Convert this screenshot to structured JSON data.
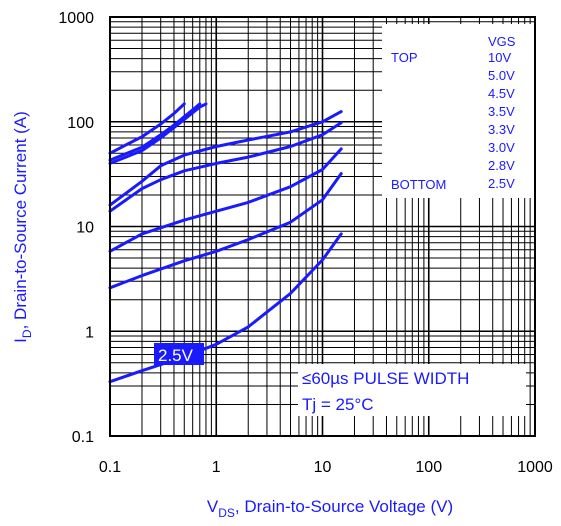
{
  "chart_data": {
    "type": "line",
    "x_scale": "log",
    "y_scale": "log",
    "xlim": [
      0.1,
      1000
    ],
    "ylim": [
      0.1,
      1000
    ],
    "grid": true,
    "xlabel": {
      "main": "V",
      "sub": "DS",
      "rest": ", Drain-to-Source Voltage (V)"
    },
    "ylabel": {
      "main": "I",
      "sub": "D",
      "rest": ", Drain-to-Source Current (A)"
    },
    "x_ticks": [
      {
        "value": 0.1,
        "label": "0.1"
      },
      {
        "value": 1,
        "label": "1"
      },
      {
        "value": 10,
        "label": "10"
      },
      {
        "value": 100,
        "label": "100"
      },
      {
        "value": 1000,
        "label": "1000"
      }
    ],
    "y_ticks": [
      {
        "value": 0.1,
        "label": "0.1"
      },
      {
        "value": 1,
        "label": "1"
      },
      {
        "value": 10,
        "label": "10"
      },
      {
        "value": 100,
        "label": "100"
      },
      {
        "value": 1000,
        "label": "1000"
      }
    ],
    "legend": {
      "header": "VGS",
      "top_label": "TOP",
      "bottom_label": "BOTTOM",
      "entries": [
        "10V",
        "5.0V",
        "4.5V",
        "3.5V",
        "3.3V",
        "3.0V",
        "2.8V",
        "2.5V"
      ]
    },
    "annotations": {
      "curve_label": "2.5V",
      "pulse": "≤60µs PULSE WIDTH",
      "tj": "Tj = 25°C"
    },
    "colors": {
      "curve": "#1a1aff",
      "text": "#1a1aff",
      "grid": "#000000"
    },
    "series": [
      {
        "x": [
          0.1,
          0.15,
          0.2,
          0.3,
          0.4,
          0.5
        ],
        "y": [
          50,
          62,
          72,
          95,
          120,
          148
        ]
      },
      {
        "x": [
          0.1,
          0.2,
          0.3,
          0.4,
          0.5,
          0.6,
          0.7
        ],
        "y": [
          43,
          57,
          75,
          93,
          112,
          130,
          148
        ]
      },
      {
        "x": [
          0.1,
          0.2,
          0.3,
          0.4,
          0.5,
          0.6,
          0.7,
          0.8
        ],
        "y": [
          40,
          53,
          70,
          88,
          105,
          122,
          138,
          148
        ]
      },
      {
        "x": [
          0.1,
          0.2,
          0.3,
          0.5,
          1,
          2,
          5,
          10,
          15
        ],
        "y": [
          16,
          27,
          38,
          48,
          58,
          67,
          80,
          100,
          125
        ]
      },
      {
        "x": [
          0.1,
          0.2,
          0.3,
          0.5,
          1,
          2,
          5,
          10,
          15
        ],
        "y": [
          14,
          23,
          28,
          34,
          40,
          46,
          58,
          75,
          98
        ]
      },
      {
        "x": [
          0.1,
          0.2,
          0.5,
          1,
          2,
          5,
          10,
          15
        ],
        "y": [
          5.8,
          8.5,
          11.5,
          14,
          17,
          24,
          35,
          55
        ]
      },
      {
        "x": [
          0.1,
          0.2,
          0.5,
          1,
          2,
          5,
          10,
          15
        ],
        "y": [
          2.6,
          3.4,
          4.7,
          5.8,
          7.5,
          11,
          18,
          32
        ]
      },
      {
        "x": [
          0.1,
          0.2,
          0.5,
          1,
          2,
          5,
          10,
          15
        ],
        "y": [
          0.33,
          0.42,
          0.57,
          0.75,
          1.1,
          2.3,
          4.8,
          8.5
        ]
      }
    ]
  }
}
